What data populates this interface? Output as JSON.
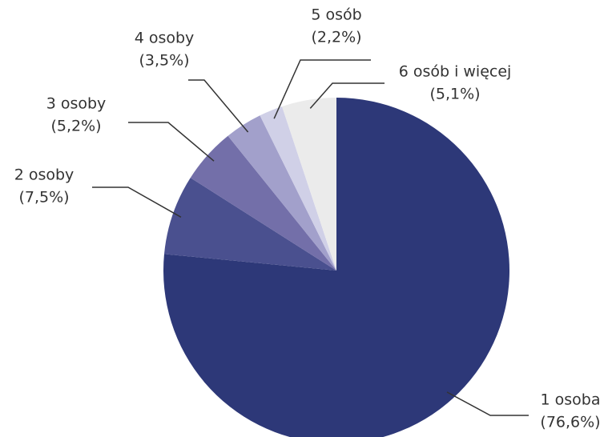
{
  "chart_data": {
    "type": "pie",
    "categories": [
      "1 osoba",
      "2 osoby",
      "3 osoby",
      "4 osoby",
      "5 osób",
      "6 osób i więcej"
    ],
    "values": [
      76.6,
      7.5,
      5.2,
      3.5,
      2.2,
      5.1
    ],
    "value_labels": [
      "(76,6%)",
      "(7,5%)",
      "(5,2%)",
      "(3,5%)",
      "(2,2%)",
      "(5,1%)"
    ],
    "colors": [
      "#2d3878",
      "#4a508f",
      "#736fa9",
      "#a2a0cb",
      "#d0d0e7",
      "#ebebeb"
    ]
  }
}
